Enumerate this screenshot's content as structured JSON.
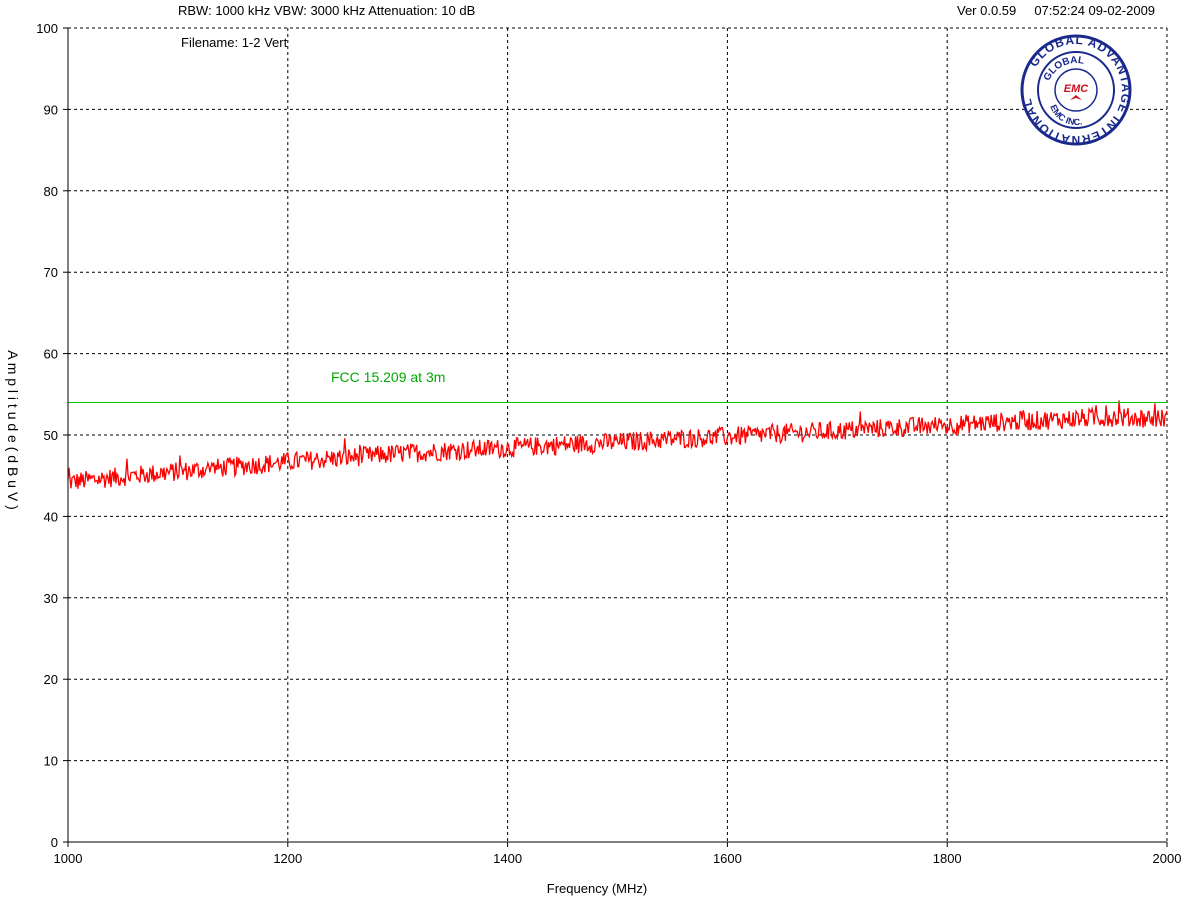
{
  "header": {
    "settings": "RBW: 1000 kHz  VBW: 3000 kHz   Attenuation: 10 dB",
    "version_time": "Ver 0.0.59     07:52:24 09-02-2009",
    "filename": "Filename: 1-2 Vert"
  },
  "logo": {
    "outer_text": "GLOBAL ADVANTAGE INTERNATIONAL",
    "inner_top": "GLOBAL",
    "inner_bottom": "EMC INC.",
    "center": "EMC",
    "colors": {
      "ring": "#1a2a8c",
      "center": "#cc1122"
    }
  },
  "chart_data": {
    "type": "line",
    "xlabel": "Frequency (MHz)",
    "ylabel": "A m p l i t u d e  ( d B u V )",
    "xlim": [
      1000,
      2000
    ],
    "ylim": [
      0,
      100
    ],
    "x_ticks": [
      1000,
      1200,
      1400,
      1600,
      1800,
      2000
    ],
    "y_ticks": [
      0,
      10,
      20,
      30,
      40,
      50,
      60,
      70,
      80,
      90,
      100
    ],
    "grid": true,
    "series": [
      {
        "color": "#ff0000",
        "x": [
          1000,
          1050,
          1100,
          1150,
          1200,
          1250,
          1300,
          1350,
          1400,
          1450,
          1500,
          1550,
          1600,
          1650,
          1700,
          1750,
          1800,
          1850,
          1900,
          1950,
          2000
        ],
        "y": [
          44.2,
          44.9,
          45.5,
          46.1,
          46.7,
          47.2,
          47.7,
          48.1,
          48.4,
          48.8,
          49.1,
          49.5,
          49.8,
          50.2,
          50.5,
          50.9,
          51.2,
          51.6,
          51.9,
          52.2,
          52.0
        ],
        "noise_dB": 1.2
      }
    ],
    "limit_line": {
      "name": "FCC 15.209 at 3m",
      "value": 54,
      "color": "#00cc00"
    }
  }
}
